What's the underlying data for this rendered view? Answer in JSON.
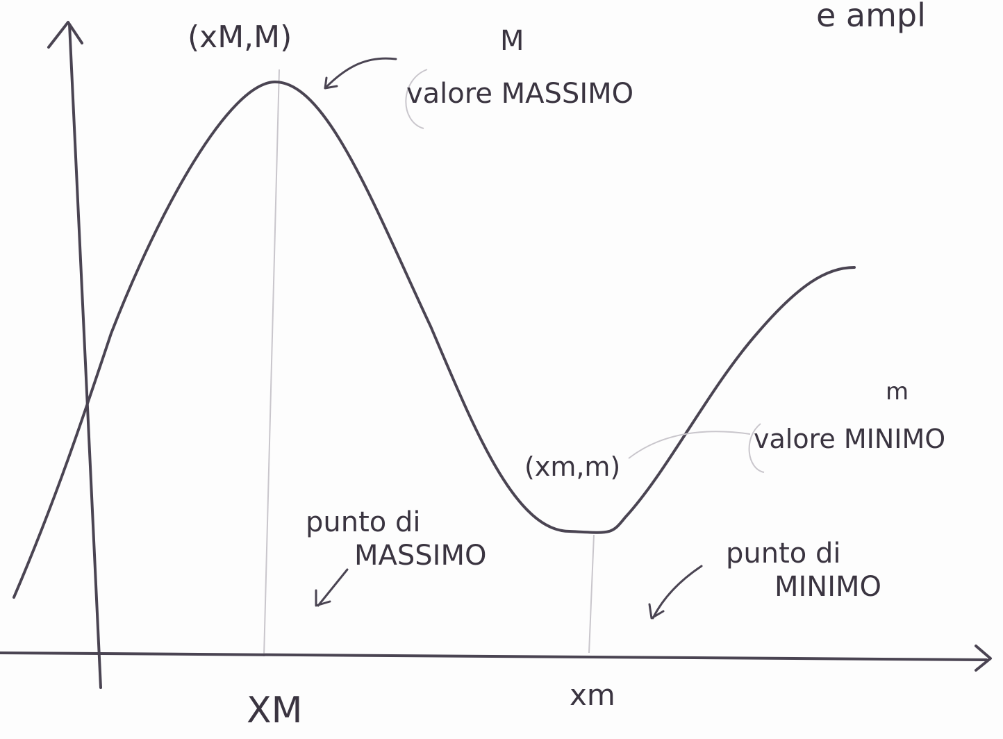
{
  "corner_note": "e ampl",
  "maximum": {
    "point": "(xM,M)",
    "value_symbol": "M",
    "value_label": "valore MASSIMO",
    "point_label": "punto di MASSIMO",
    "x_label": "XM"
  },
  "minimum": {
    "point": "(xm,m)",
    "value_symbol": "m",
    "value_label": "valore MINIMO",
    "point_label": "punto di MINIMO",
    "x_label": "xm"
  }
}
